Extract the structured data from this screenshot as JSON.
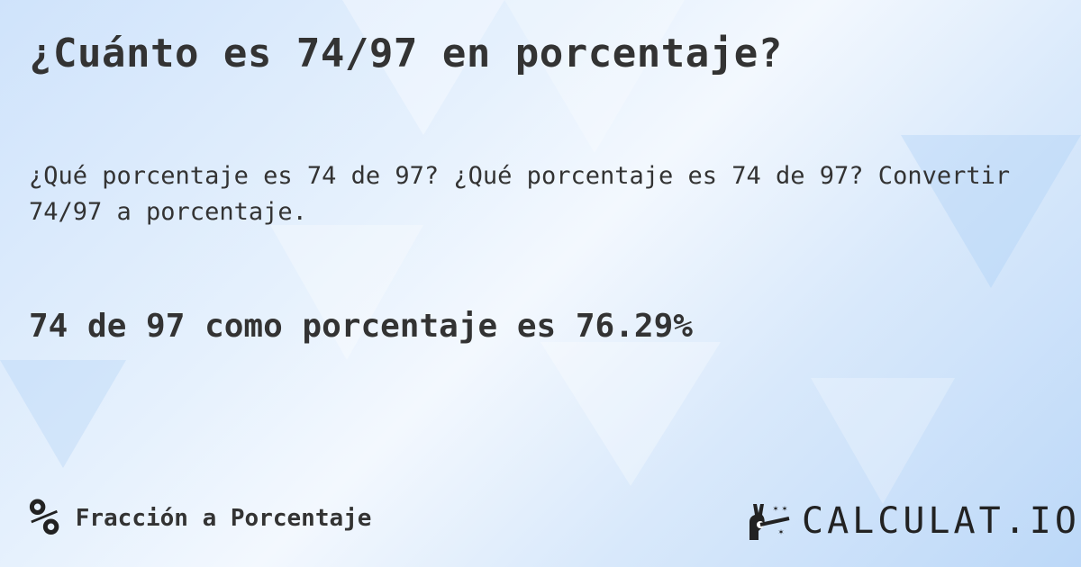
{
  "title": "¿Cuánto es 74/97 en porcentaje?",
  "subtitle": "¿Qué porcentaje es 74 de 97? ¿Qué porcentaje es 74 de 97? Convertir 74/97 a porcentaje.",
  "answer": "74 de 97 como porcentaje es 76.29%",
  "footer": {
    "icon": "percent-icon",
    "symbol": "%",
    "category": "Fracción a Porcentaje"
  },
  "logo": {
    "text": "CALCULAT.IO",
    "icon": "magic-hand-wand-icon"
  }
}
